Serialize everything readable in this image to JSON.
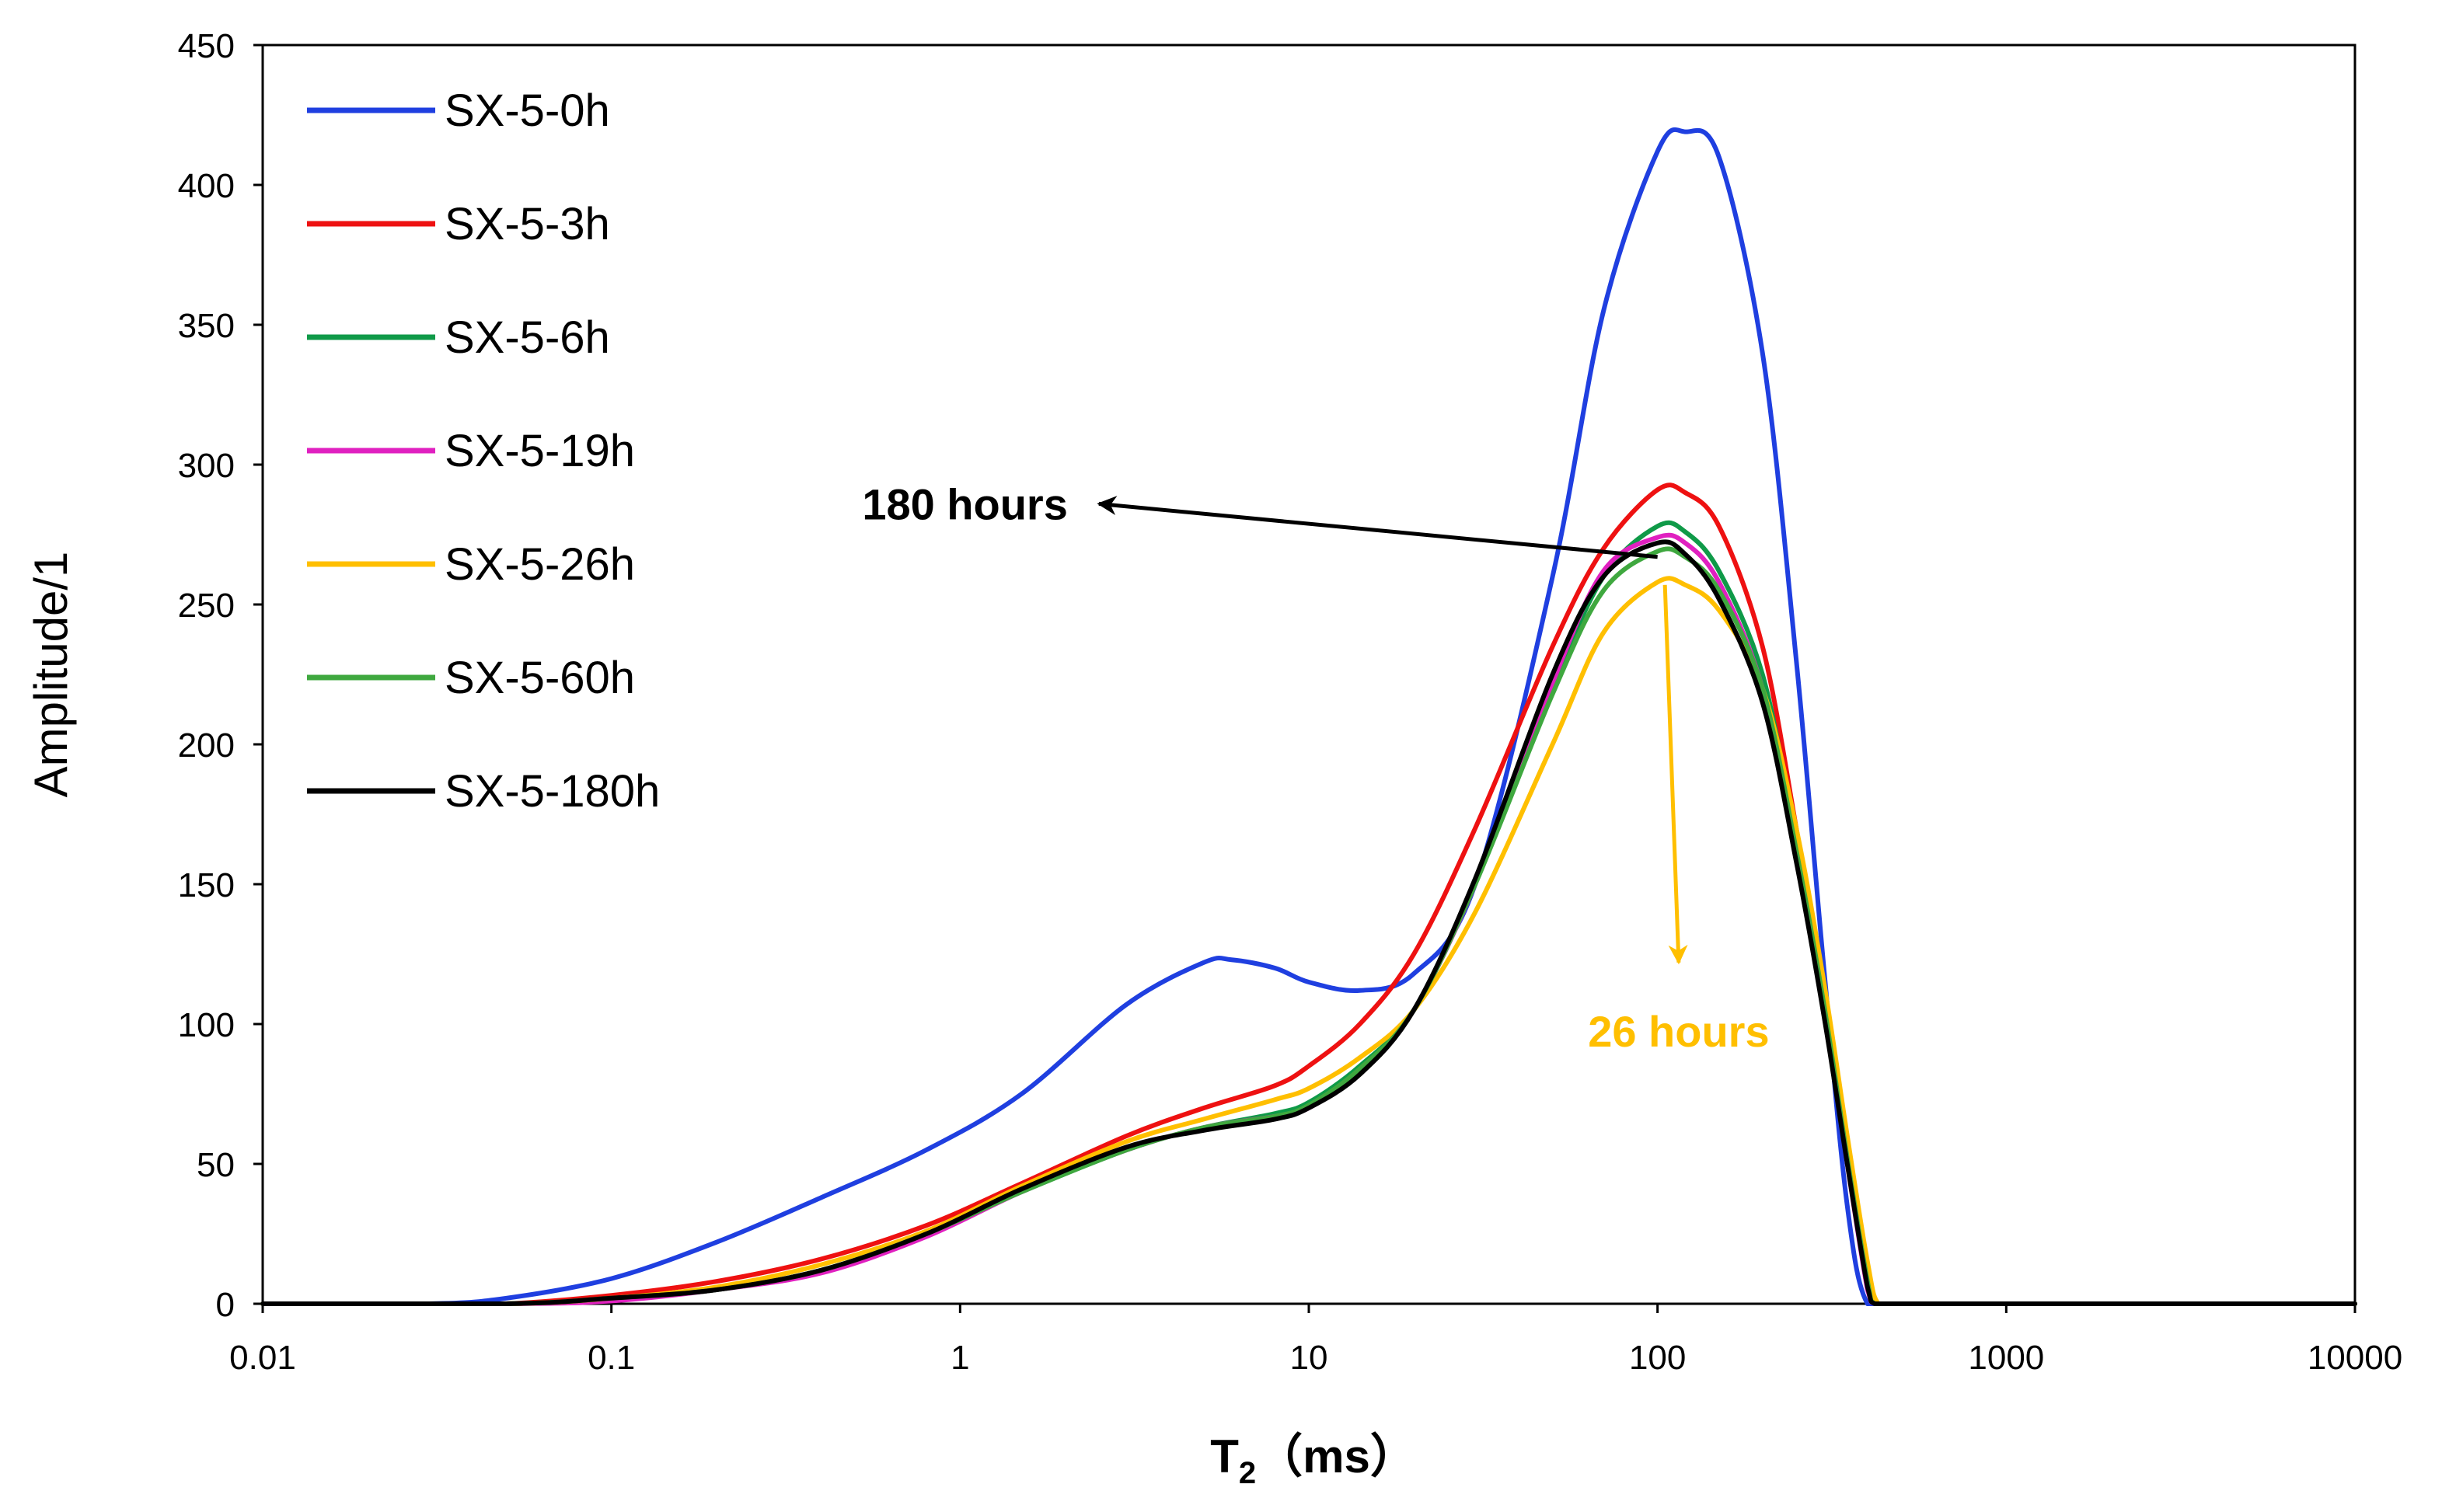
{
  "chart_data": {
    "type": "line",
    "title": "",
    "xlabel": "T2 (ms)",
    "xlabel_main": "T",
    "xlabel_sub": "2",
    "xlabel_unit": "（ms）",
    "ylabel": "Amplitude/1",
    "xscale": "log",
    "xlim": [
      0.01,
      10000
    ],
    "ylim": [
      0,
      450
    ],
    "x_ticks": [
      0.01,
      0.1,
      1,
      10,
      100,
      1000,
      10000
    ],
    "x_tick_labels": [
      "0.01",
      "0.1",
      "1",
      "10",
      "100",
      "1000",
      "10000"
    ],
    "y_ticks": [
      0,
      50,
      100,
      150,
      200,
      250,
      300,
      350,
      400,
      450
    ],
    "y_tick_labels": [
      "0",
      "50",
      "100",
      "150",
      "200",
      "250",
      "300",
      "350",
      "400",
      "450"
    ],
    "grid": false,
    "legend_position": "top-left",
    "series": [
      {
        "name": "SX-5-0h",
        "color": "#1f3fe0",
        "x": [
          0.01,
          0.03,
          0.05,
          0.1,
          0.2,
          0.4,
          0.8,
          1.5,
          3,
          5,
          6,
          8,
          10,
          14,
          20,
          30,
          50,
          70,
          100,
          120,
          150,
          200,
          250,
          300,
          350,
          400,
          500,
          1000,
          10000
        ],
        "y": [
          0,
          0,
          2,
          9,
          22,
          38,
          55,
          75,
          107,
          122,
          123,
          120,
          115,
          112,
          118,
          150,
          260,
          355,
          412,
          419,
          410,
          340,
          230,
          120,
          35,
          0,
          0,
          0,
          0
        ]
      },
      {
        "name": "SX-5-3h",
        "color": "#ee1111",
        "x": [
          0.01,
          0.03,
          0.05,
          0.1,
          0.2,
          0.4,
          0.8,
          1.5,
          3,
          5,
          8,
          10,
          14,
          20,
          30,
          50,
          70,
          100,
          120,
          150,
          200,
          250,
          300,
          350,
          400,
          420,
          500,
          1000,
          10000
        ],
        "y": [
          0,
          0,
          0,
          3,
          8,
          16,
          28,
          43,
          60,
          70,
          78,
          85,
          100,
          125,
          170,
          235,
          270,
          291,
          290,
          278,
          235,
          170,
          110,
          55,
          10,
          0,
          0,
          0,
          0
        ]
      },
      {
        "name": "SX-5-6h",
        "color": "#0f9a48",
        "x": [
          0.01,
          0.05,
          0.1,
          0.2,
          0.4,
          0.8,
          1.5,
          3,
          5,
          8,
          10,
          14,
          20,
          30,
          50,
          70,
          100,
          120,
          150,
          200,
          250,
          300,
          350,
          400,
          420,
          500,
          1000,
          10000
        ],
        "y": [
          0,
          0,
          2,
          5,
          12,
          25,
          40,
          55,
          63,
          68,
          72,
          85,
          105,
          150,
          220,
          260,
          278,
          276,
          262,
          225,
          165,
          110,
          55,
          10,
          0,
          0,
          0,
          0
        ]
      },
      {
        "name": "SX-5-19h",
        "color": "#e020c0",
        "x": [
          0.01,
          0.05,
          0.1,
          0.2,
          0.4,
          0.8,
          1.5,
          3,
          5,
          8,
          10,
          14,
          20,
          30,
          50,
          70,
          100,
          120,
          150,
          200,
          250,
          300,
          350,
          400,
          420,
          500,
          1000,
          10000
        ],
        "y": [
          0,
          0,
          1,
          5,
          11,
          24,
          40,
          55,
          63,
          67,
          70,
          83,
          105,
          150,
          222,
          262,
          274,
          272,
          258,
          220,
          160,
          105,
          50,
          5,
          0,
          0,
          0,
          0
        ]
      },
      {
        "name": "SX-5-26h",
        "color": "#ffbf00",
        "x": [
          0.01,
          0.05,
          0.1,
          0.2,
          0.4,
          0.8,
          1.5,
          3,
          5,
          8,
          10,
          14,
          20,
          30,
          50,
          70,
          100,
          120,
          150,
          200,
          250,
          300,
          350,
          400,
          430,
          500,
          1000,
          10000
        ],
        "y": [
          0,
          0,
          2,
          6,
          14,
          26,
          42,
          58,
          66,
          73,
          77,
          88,
          105,
          140,
          200,
          240,
          258,
          257,
          248,
          220,
          170,
          115,
          60,
          15,
          0,
          0,
          0,
          0
        ]
      },
      {
        "name": "SX-5-60h",
        "color": "#3fa83f",
        "x": [
          0.01,
          0.05,
          0.1,
          0.2,
          0.4,
          0.8,
          1.5,
          3,
          5,
          8,
          10,
          14,
          20,
          30,
          50,
          70,
          100,
          120,
          150,
          200,
          250,
          300,
          350,
          400,
          420,
          500,
          1000,
          10000
        ],
        "y": [
          0,
          0,
          2,
          5,
          12,
          25,
          40,
          55,
          63,
          67,
          71,
          84,
          105,
          150,
          218,
          255,
          269,
          267,
          255,
          220,
          162,
          107,
          52,
          8,
          0,
          0,
          0,
          0
        ]
      },
      {
        "name": "SX-5-180h",
        "color": "#000000",
        "x": [
          0.01,
          0.05,
          0.1,
          0.2,
          0.4,
          0.8,
          1.5,
          3,
          5,
          8,
          10,
          14,
          20,
          30,
          50,
          70,
          100,
          120,
          150,
          200,
          250,
          300,
          350,
          400,
          420,
          500,
          1000,
          10000
        ],
        "y": [
          0,
          0,
          2,
          5,
          12,
          25,
          41,
          56,
          62,
          66,
          70,
          82,
          105,
          152,
          225,
          260,
          272,
          268,
          252,
          215,
          158,
          103,
          50,
          6,
          0,
          0,
          0,
          0
        ]
      }
    ],
    "annotations": [
      {
        "text": "180 hours",
        "color": "#000000",
        "arrow_from": [
          100,
          267
        ],
        "arrow_to": [
          2.5,
          286
        ]
      },
      {
        "text": "26 hours",
        "color": "#ffbf00",
        "arrow_from": [
          105,
          257
        ],
        "arrow_to": [
          115,
          122
        ]
      }
    ]
  }
}
